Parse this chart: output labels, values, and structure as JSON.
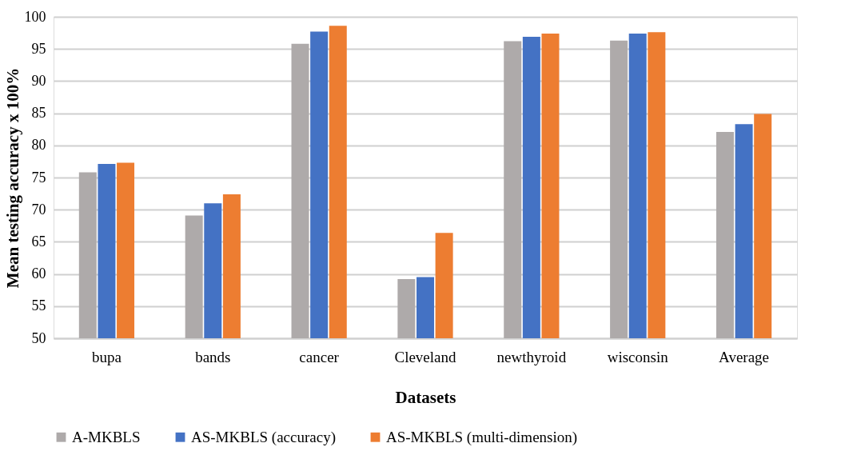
{
  "chart_data": {
    "type": "bar",
    "xlabel": "Datasets",
    "ylabel": "Mean testing accuracy x 100%",
    "categories": [
      "bupa",
      "bands",
      "cancer",
      "Cleveland",
      "newthyroid",
      "wisconsin",
      "Average"
    ],
    "series": [
      {
        "name": "A-MKBLS",
        "color": "#aeaaaa",
        "values": [
          75.8,
          69.1,
          95.8,
          59.2,
          96.2,
          96.3,
          82.1
        ]
      },
      {
        "name": "AS-MKBLS (accuracy)",
        "color": "#4472c4",
        "values": [
          77.1,
          71.0,
          97.7,
          59.5,
          96.9,
          97.4,
          83.3
        ]
      },
      {
        "name": "AS-MKBLS (multi-dimension)",
        "color": "#ed7d31",
        "values": [
          77.3,
          72.4,
          98.6,
          66.4,
          97.4,
          97.6,
          84.9
        ]
      }
    ],
    "ylim": [
      50,
      100
    ],
    "yticks": [
      50,
      55,
      60,
      65,
      70,
      75,
      80,
      85,
      90,
      95,
      100
    ],
    "grid": "y",
    "legend": "bottom"
  }
}
